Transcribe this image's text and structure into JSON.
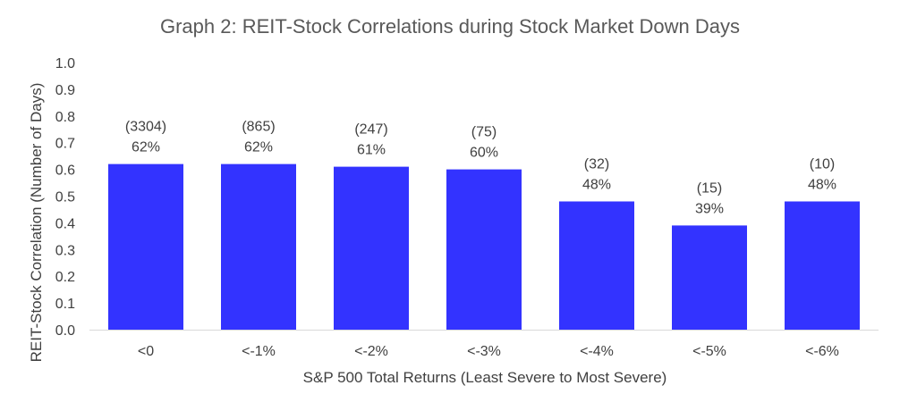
{
  "chart_data": {
    "type": "bar",
    "title": "Graph 2: REIT-Stock Correlations during Stock Market Down Days",
    "xlabel": "S&P 500 Total Returns (Least Severe to Most Severe)",
    "ylabel": "REIT-Stock Correlation (Number of Days)",
    "ylim": [
      0,
      1.0
    ],
    "yticks": [
      "0.0",
      "0.1",
      "0.2",
      "0.3",
      "0.4",
      "0.5",
      "0.6",
      "0.7",
      "0.8",
      "0.9",
      "1.0"
    ],
    "grid": false,
    "categories": [
      "<0",
      "<-1%",
      "<-2%",
      "<-3%",
      "<-4%",
      "<-5%",
      "<-6%"
    ],
    "values": [
      0.62,
      0.62,
      0.61,
      0.6,
      0.48,
      0.39,
      0.48
    ],
    "counts": [
      "(3304)",
      "(865)",
      "(247)",
      "(75)",
      "(32)",
      "(15)",
      "(10)"
    ],
    "percent_labels": [
      "62%",
      "62%",
      "61%",
      "60%",
      "48%",
      "39%",
      "48%"
    ],
    "bar_color": "#3333FF",
    "axis_color": "#D9D9D9"
  }
}
